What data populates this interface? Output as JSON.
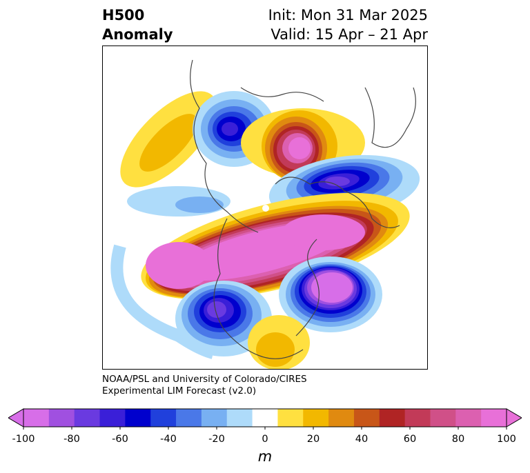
{
  "header": {
    "title_line1": "H500",
    "title_line2": "Anomaly",
    "init_text": "Init: Mon 31 Mar 2025",
    "valid_text": "Valid: 15 Apr – 21 Apr"
  },
  "credit": {
    "line1": "NOAA/PSL and University of Colorado/CIRES",
    "line2": "Experimental LIM Forecast (v2.0)"
  },
  "colorbar": {
    "unit": "m",
    "tick_labels": [
      "-100",
      "-80",
      "-60",
      "-40",
      "-20",
      "0",
      "20",
      "40",
      "60",
      "80",
      "100"
    ],
    "levels": [
      -100,
      -90,
      -80,
      -70,
      -60,
      -50,
      -40,
      -30,
      -20,
      -10,
      10,
      20,
      30,
      40,
      50,
      60,
      70,
      80,
      90,
      100
    ],
    "colors": [
      "#d76ee8",
      "#a050e0",
      "#6a3ae0",
      "#3a1fd8",
      "#0000cd",
      "#2040dc",
      "#4a78e8",
      "#78b0f2",
      "#aedbfa",
      "#ffffff",
      "#ffe040",
      "#f2b800",
      "#e08a10",
      "#c85618",
      "#b02424",
      "#c23a58",
      "#d05088",
      "#dc60b0",
      "#e870d8"
    ],
    "under_color": "#d76ee8",
    "over_color": "#e870d8"
  }
}
